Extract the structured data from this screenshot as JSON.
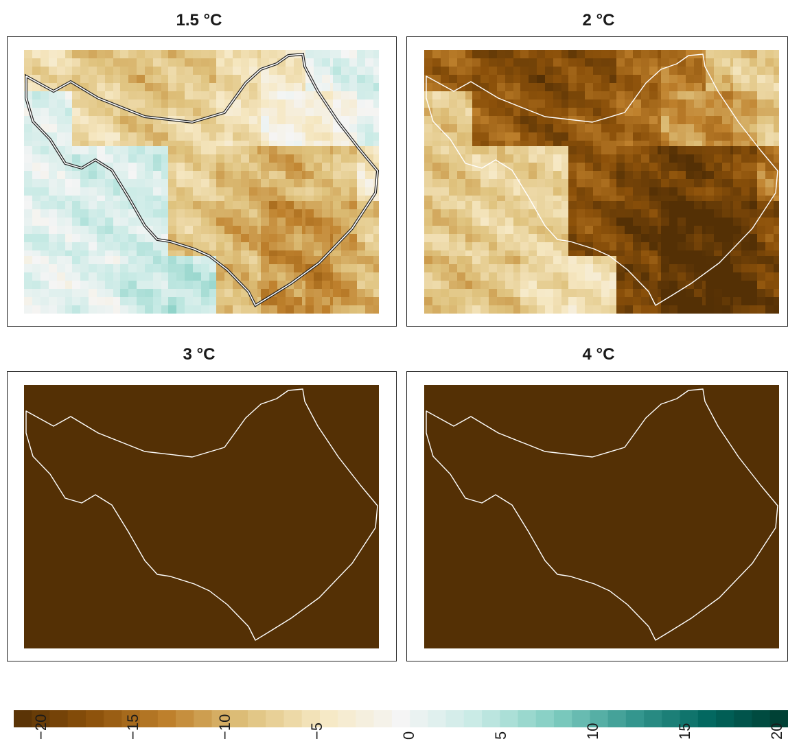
{
  "panels": [
    {
      "title": "1.5 °C",
      "warming": 1.5
    },
    {
      "title": "2 °C",
      "warming": 2
    },
    {
      "title": "3 °C",
      "warming": 3
    },
    {
      "title": "4 °C",
      "warming": 4
    }
  ],
  "legend": {
    "min": -22,
    "max": 22,
    "ticks": [
      "−20",
      "−15",
      "−10",
      "−5",
      "0",
      "5",
      "10",
      "15",
      "20"
    ],
    "tick_values": [
      -20,
      -15,
      -10,
      -5,
      0,
      5,
      10,
      15,
      20
    ],
    "palette": [
      "#543005",
      "#8c510a",
      "#bf812d",
      "#dfc27d",
      "#f6e8c3",
      "#f5f5f5",
      "#c7eae5",
      "#80cdc1",
      "#35978f",
      "#01665e",
      "#003c30"
    ]
  },
  "boundary_color_light_panels": "#ffffff",
  "boundary_color_first_panel": "#222222"
}
